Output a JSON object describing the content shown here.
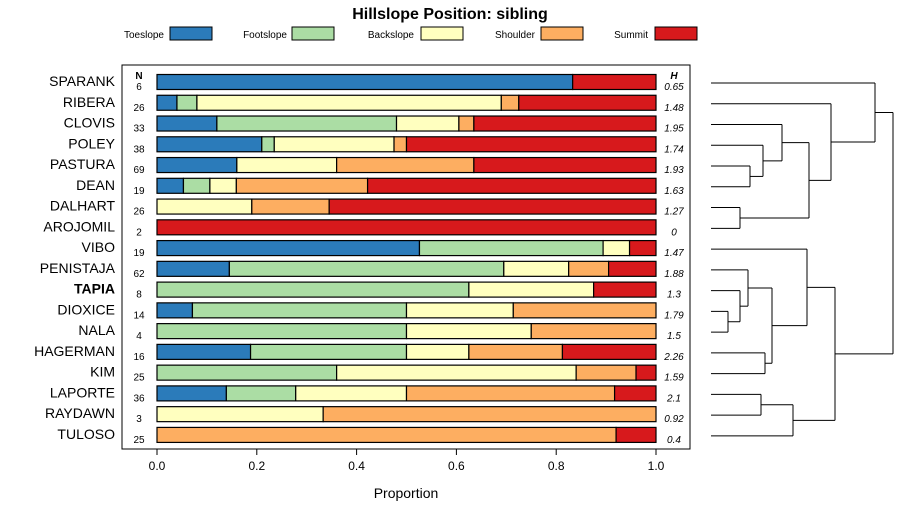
{
  "chart_data": {
    "type": "bar",
    "subtype": "stacked-horizontal-proportion",
    "title": "Hillslope Position: sibling",
    "xlabel": "Proportion",
    "ylabel": "",
    "xlim": [
      0,
      1
    ],
    "x_ticks": [
      "0.0",
      "0.2",
      "0.4",
      "0.6",
      "0.8",
      "1.0"
    ],
    "n_header": "N",
    "h_header": "H",
    "legend_position": "top",
    "series": [
      {
        "name": "Toeslope",
        "color": "#2b7bba"
      },
      {
        "name": "Footslope",
        "color": "#abdda4"
      },
      {
        "name": "Backslope",
        "color": "#ffffbf"
      },
      {
        "name": "Shoulder",
        "color": "#fdae61"
      },
      {
        "name": "Summit",
        "color": "#d7191c"
      }
    ],
    "rows": [
      {
        "label": "SPARANK",
        "n": "6",
        "h": "0.65",
        "bold": false,
        "values": [
          0.833,
          0,
          0,
          0,
          0.167
        ]
      },
      {
        "label": "RIBERA",
        "n": "26",
        "h": "1.48",
        "bold": false,
        "values": [
          0.04,
          0.04,
          0.61,
          0.035,
          0.275
        ]
      },
      {
        "label": "CLOVIS",
        "n": "33",
        "h": "1.95",
        "bold": false,
        "values": [
          0.12,
          0.36,
          0.125,
          0.03,
          0.365
        ]
      },
      {
        "label": "POLEY",
        "n": "38",
        "h": "1.74",
        "bold": false,
        "values": [
          0.21,
          0.025,
          0.24,
          0.025,
          0.5
        ]
      },
      {
        "label": "PASTURA",
        "n": "69",
        "h": "1.93",
        "bold": false,
        "values": [
          0.16,
          0,
          0.2,
          0.275,
          0.365
        ]
      },
      {
        "label": "DEAN",
        "n": "19",
        "h": "1.63",
        "bold": false,
        "values": [
          0.053,
          0.053,
          0.053,
          0.263,
          0.578
        ]
      },
      {
        "label": "DALHART",
        "n": "26",
        "h": "1.27",
        "bold": false,
        "values": [
          0,
          0,
          0.19,
          0.155,
          0.655
        ]
      },
      {
        "label": "AROJOMIL",
        "n": "2",
        "h": "0",
        "bold": false,
        "values": [
          0,
          0,
          0,
          0,
          1.0
        ]
      },
      {
        "label": "VIBO",
        "n": "19",
        "h": "1.47",
        "bold": false,
        "values": [
          0.526,
          0.368,
          0.053,
          0,
          0.053
        ]
      },
      {
        "label": "PENISTAJA",
        "n": "62",
        "h": "1.88",
        "bold": false,
        "values": [
          0.145,
          0.55,
          0.13,
          0.08,
          0.095
        ]
      },
      {
        "label": "TAPIA",
        "n": "8",
        "h": "1.3",
        "bold": true,
        "values": [
          0,
          0.625,
          0.25,
          0,
          0.125
        ]
      },
      {
        "label": "DIOXICE",
        "n": "14",
        "h": "1.79",
        "bold": false,
        "values": [
          0.071,
          0.429,
          0.214,
          0.286,
          0
        ]
      },
      {
        "label": "NALA",
        "n": "4",
        "h": "1.5",
        "bold": false,
        "values": [
          0,
          0.5,
          0.25,
          0.25,
          0
        ]
      },
      {
        "label": "HAGERMAN",
        "n": "16",
        "h": "2.26",
        "bold": false,
        "values": [
          0.1875,
          0.3125,
          0.125,
          0.1875,
          0.1875
        ]
      },
      {
        "label": "KIM",
        "n": "25",
        "h": "1.59",
        "bold": false,
        "values": [
          0,
          0.36,
          0.48,
          0.12,
          0.04
        ]
      },
      {
        "label": "LAPORTE",
        "n": "36",
        "h": "2.1",
        "bold": false,
        "values": [
          0.139,
          0.139,
          0.222,
          0.417,
          0.083
        ]
      },
      {
        "label": "RAYDAWN",
        "n": "3",
        "h": "0.92",
        "bold": false,
        "values": [
          0,
          0,
          0.333,
          0.667,
          0
        ]
      },
      {
        "label": "TULOSO",
        "n": "25",
        "h": "0.4",
        "bold": false,
        "values": [
          0,
          0,
          0,
          0.92,
          0.08
        ]
      }
    ],
    "dendrogram": "hierarchical clustering of series (right margin)"
  }
}
